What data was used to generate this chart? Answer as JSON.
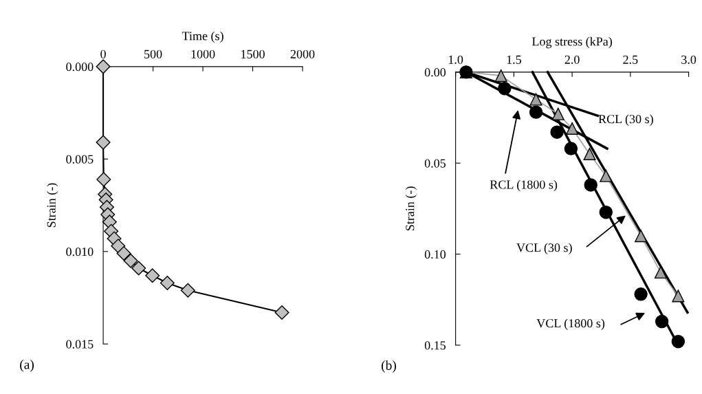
{
  "chart_data": [
    {
      "type": "line",
      "xlabel": "Time (s)",
      "ylabel": "Strain (-)",
      "annotations": [
        "(a)"
      ],
      "xlim": [
        0,
        2000
      ],
      "xticks": [
        0,
        500,
        1000,
        1500,
        2000
      ],
      "ylim": [
        0.015,
        0
      ],
      "yticks": [
        {
          "value": 0,
          "label": "0.000"
        },
        {
          "value": 0.005,
          "label": "0.005"
        },
        {
          "value": 0.01,
          "label": "0.010"
        },
        {
          "value": 0.015,
          "label": "0.015"
        }
      ],
      "marker": "diamond",
      "grid": false,
      "legend": false,
      "series": [
        {
          "color": "#c0c0c0",
          "x": [
            0,
            0,
            5,
            18,
            28,
            37,
            46,
            64,
            80,
            110,
            150,
            207,
            276,
            356,
            494,
            643,
            850,
            1793
          ],
          "values": [
            0,
            0.0041,
            0.0061,
            0.0069,
            0.0072,
            0.0076,
            0.008,
            0.0084,
            0.0089,
            0.0093,
            0.0097,
            0.0101,
            0.0105,
            0.0109,
            0.0113,
            0.0117,
            0.0121,
            0.0133
          ]
        }
      ]
    },
    {
      "type": "scatter",
      "xlabel": "Log stress (kPa)",
      "ylabel": "Strain (-)",
      "annotations": [
        "(b)",
        "RCL (30 s)",
        "RCL (1800 s)",
        "VCL (30 s)",
        "VCL (1800 s)"
      ],
      "xlim": [
        1.0,
        3.0
      ],
      "xticks": [
        {
          "value": 1.0,
          "label": "1.0"
        },
        {
          "value": 1.5,
          "label": "1.5"
        },
        {
          "value": 2.0,
          "label": "2.0"
        },
        {
          "value": 2.5,
          "label": "2.5"
        },
        {
          "value": 3.0,
          "label": "3.0"
        }
      ],
      "ylim": [
        0.15,
        0
      ],
      "yticks": [
        {
          "value": 0,
          "label": "0.00"
        },
        {
          "value": 0.05,
          "label": "0.05"
        },
        {
          "value": 0.1,
          "label": "0.10"
        },
        {
          "value": 0.15,
          "label": "0.15"
        }
      ],
      "grid": false,
      "legend": false,
      "series": [
        {
          "type": "line",
          "color": "#000000",
          "x": [
            1.09,
            2.22
          ],
          "values": [
            0,
            0.024
          ]
        },
        {
          "type": "line",
          "color": "#000000",
          "x": [
            1.09,
            2.3
          ],
          "values": [
            0,
            0.042
          ]
        },
        {
          "type": "line",
          "color": "#000000",
          "x": [
            1.79,
            2.99
          ],
          "values": [
            0,
            0.132
          ]
        },
        {
          "type": "line",
          "color": "#000000",
          "x": [
            1.66,
            2.91
          ],
          "values": [
            0,
            0.15
          ]
        },
        {
          "type": "line",
          "color": "#a0a0a0",
          "marker": "triangle",
          "x": [
            1.09,
            1.39,
            1.69,
            1.88,
            2.0,
            2.15,
            2.29,
            2.59,
            2.76,
            2.91
          ],
          "values": [
            0,
            0.002,
            0.015,
            0.023,
            0.031,
            0.045,
            0.057,
            0.09,
            0.11,
            0.123
          ]
        },
        {
          "type": "scatter",
          "color": "#000000",
          "marker": "circle",
          "x": [
            1.09,
            1.42,
            1.69,
            1.87,
            1.99,
            2.16,
            2.29,
            2.59,
            2.77,
            2.91
          ],
          "values": [
            0,
            0.009,
            0.022,
            0.033,
            0.042,
            0.062,
            0.077,
            0.122,
            0.137,
            0.148
          ]
        }
      ]
    }
  ]
}
